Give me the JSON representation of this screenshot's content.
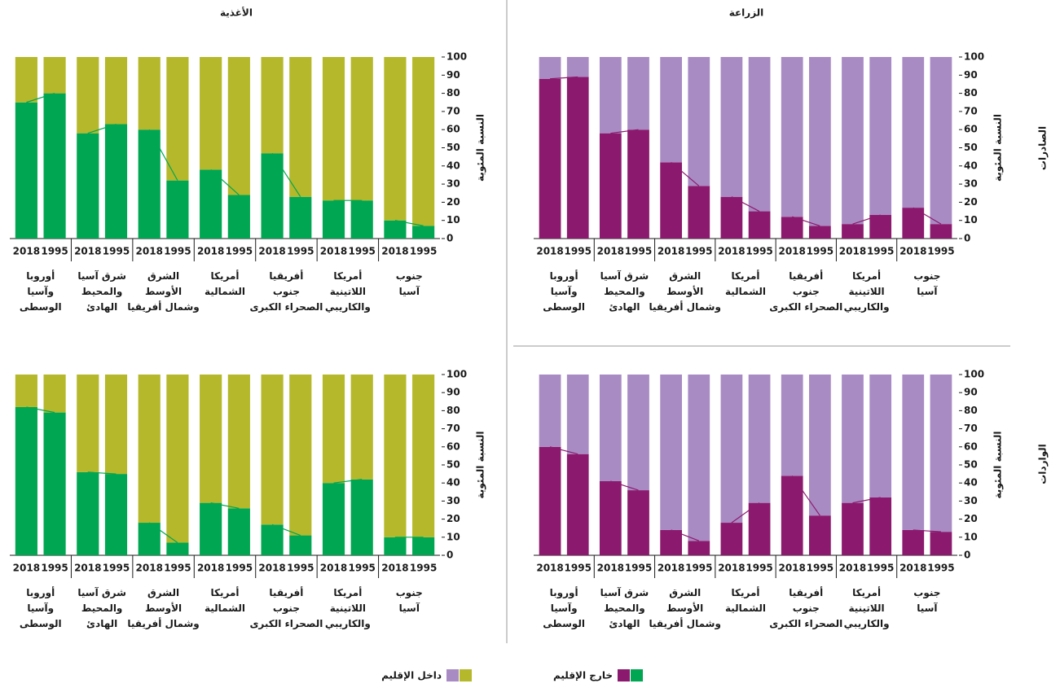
{
  "columns": [
    "الزراعة",
    "الأغذية"
  ],
  "rows": [
    "الصادرات",
    "الواردات"
  ],
  "legend": [
    {
      "name": "خارج الإقليم",
      "colors": [
        "#8b1a6e",
        "#00a651"
      ]
    },
    {
      "name": "داخل الإقليم",
      "colors": [
        "#a98bc4",
        "#b5b82a"
      ]
    }
  ],
  "chart_data": [
    {
      "type": "bar",
      "stacked": true,
      "ylabel": "النسبة المئوية",
      "groups": [
        "جنوب\nآسيا",
        "أمريكا\nاللاتينية\nوالكاريبي",
        "أفريقيا\nجنوب\nالصحراء الكبرى",
        "أمريكا\nالشمالية",
        "الشرق\nالأوسط\nوشمال أفريقيا",
        "شرق آسيا\nوالمحيط\nالهادئ",
        "أوروبا\nوآسيا\nالوسطى"
      ],
      "categories": [
        "1995",
        "2018",
        "1995",
        "2018",
        "1995",
        "2018",
        "1995",
        "2018",
        "1995",
        "2018",
        "1995",
        "2018",
        "1995",
        "2018"
      ],
      "series": [
        {
          "color": "#8b1a6e",
          "values": [
            8,
            17,
            13,
            8,
            7,
            12,
            15,
            23,
            29,
            42,
            60,
            58,
            89,
            88
          ]
        },
        {
          "color": "#a98bc4",
          "values": [
            92,
            83,
            87,
            92,
            93,
            88,
            85,
            77,
            71,
            58,
            40,
            42,
            11,
            12
          ]
        }
      ],
      "ylim": [
        0,
        100
      ],
      "yticks": [
        0,
        10,
        20,
        30,
        40,
        50,
        60,
        70,
        80,
        90,
        100
      ]
    },
    {
      "type": "bar",
      "stacked": true,
      "ylabel": "النسبة المئوية",
      "groups": [
        "جنوب\nآسيا",
        "أمريكا\nاللاتينية\nوالكاريبي",
        "أفريقيا\nجنوب\nالصحراء الكبرى",
        "أمريكا\nالشمالية",
        "الشرق\nالأوسط\nوشمال أفريقيا",
        "شرق آسيا\nوالمحيط\nالهادئ",
        "أوروبا\nوآسيا\nالوسطى"
      ],
      "categories": [
        "1995",
        "2018",
        "1995",
        "2018",
        "1995",
        "2018",
        "1995",
        "2018",
        "1995",
        "2018",
        "1995",
        "2018",
        "1995",
        "2018"
      ],
      "series": [
        {
          "color": "#00a651",
          "values": [
            7,
            10,
            21,
            21,
            23,
            47,
            24,
            38,
            32,
            60,
            63,
            58,
            80,
            75
          ]
        },
        {
          "color": "#b5b82a",
          "values": [
            93,
            90,
            79,
            79,
            77,
            53,
            76,
            62,
            68,
            40,
            37,
            42,
            20,
            25
          ]
        }
      ],
      "ylim": [
        0,
        100
      ],
      "yticks": [
        0,
        10,
        20,
        30,
        40,
        50,
        60,
        70,
        80,
        90,
        100
      ]
    },
    {
      "type": "bar",
      "stacked": true,
      "ylabel": "النسبة المئوية",
      "groups": [
        "جنوب\nآسيا",
        "أمريكا\nاللاتينية\nوالكاريبي",
        "أفريقيا\nجنوب\nالصحراء الكبرى",
        "أمريكا\nالشمالية",
        "الشرق\nالأوسط\nوشمال أفريقيا",
        "شرق آسيا\nوالمحيط\nالهادئ",
        "أوروبا\nوآسيا\nالوسطى"
      ],
      "categories": [
        "1995",
        "2018",
        "1995",
        "2018",
        "1995",
        "2018",
        "1995",
        "2018",
        "1995",
        "2018",
        "1995",
        "2018",
        "1995",
        "2018"
      ],
      "series": [
        {
          "color": "#8b1a6e",
          "values": [
            13,
            14,
            32,
            29,
            22,
            44,
            29,
            18,
            8,
            14,
            36,
            41,
            56,
            60
          ]
        },
        {
          "color": "#a98bc4",
          "values": [
            87,
            86,
            68,
            71,
            78,
            56,
            71,
            82,
            92,
            86,
            64,
            59,
            44,
            40
          ]
        }
      ],
      "ylim": [
        0,
        100
      ],
      "yticks": [
        0,
        10,
        20,
        30,
        40,
        50,
        60,
        70,
        80,
        90,
        100
      ]
    },
    {
      "type": "bar",
      "stacked": true,
      "ylabel": "النسبة المئوية",
      "groups": [
        "جنوب\nآسيا",
        "أمريكا\nاللاتينية\nوالكاريبي",
        "أفريقيا\nجنوب\nالصحراء الكبرى",
        "أمريكا\nالشمالية",
        "الشرق\nالأوسط\nوشمال أفريقيا",
        "شرق آسيا\nوالمحيط\nالهادئ",
        "أوروبا\nوآسيا\nالوسطى"
      ],
      "categories": [
        "1995",
        "2018",
        "1995",
        "2018",
        "1995",
        "2018",
        "1995",
        "2018",
        "1995",
        "2018",
        "1995",
        "2018",
        "1995",
        "2018"
      ],
      "series": [
        {
          "color": "#00a651",
          "values": [
            10,
            10,
            42,
            40,
            11,
            17,
            26,
            29,
            7,
            18,
            45,
            46,
            79,
            82
          ]
        },
        {
          "color": "#b5b82a",
          "values": [
            90,
            90,
            58,
            60,
            89,
            83,
            74,
            71,
            93,
            82,
            55,
            54,
            21,
            18
          ]
        }
      ],
      "ylim": [
        0,
        100
      ],
      "yticks": [
        0,
        10,
        20,
        30,
        40,
        50,
        60,
        70,
        80,
        90,
        100
      ]
    }
  ]
}
